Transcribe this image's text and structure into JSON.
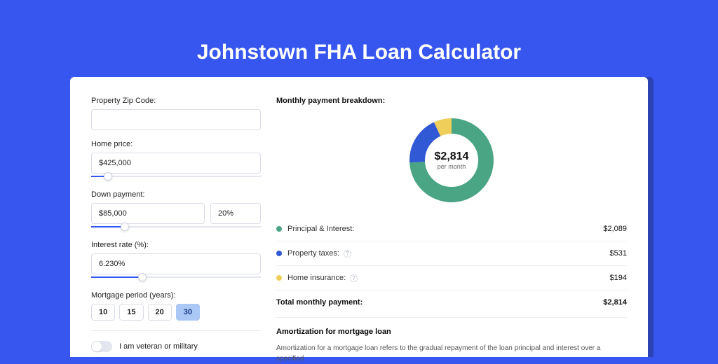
{
  "title": "Johnstown FHA Loan Calculator",
  "colors": {
    "page_bg": "#3656ef",
    "panel_shadow": "#2b42b5",
    "input_border": "#d9dde5",
    "slider_track": "#e3e6ee",
    "slider_fill": "#3656ef",
    "pill_active_bg": "#a9c8f5",
    "pill_active_fg": "#1a3a8a",
    "divider": "#eceef3"
  },
  "form": {
    "zip": {
      "label": "Property Zip Code:",
      "value": ""
    },
    "home_price": {
      "label": "Home price:",
      "value": "$425,000",
      "slider_pct": 10
    },
    "down_payment": {
      "label": "Down payment:",
      "value": "$85,000",
      "pct": "20%",
      "slider_pct": 20
    },
    "interest_rate": {
      "label": "Interest rate (%):",
      "value": "6.230%",
      "slider_pct": 30
    },
    "mortgage_period": {
      "label": "Mortgage period (years):",
      "options": [
        "10",
        "15",
        "20",
        "30"
      ],
      "selected": "30"
    },
    "veteran": {
      "label": "I am veteran or military",
      "checked": false
    }
  },
  "breakdown": {
    "title": "Monthly payment breakdown:",
    "center_value": "$2,814",
    "center_label": "per month",
    "donut": {
      "thickness": 22,
      "series": [
        {
          "key": "principal_interest",
          "color": "#4aa584",
          "pct": 74
        },
        {
          "key": "property_taxes",
          "color": "#3159d5",
          "pct": 19
        },
        {
          "key": "home_insurance",
          "color": "#efcf5a",
          "pct": 7
        }
      ]
    },
    "lines": [
      {
        "label": "Principal & Interest:",
        "color": "#4aa584",
        "value": "$2,089",
        "info": false
      },
      {
        "label": "Property taxes:",
        "color": "#3159d5",
        "value": "$531",
        "info": true
      },
      {
        "label": "Home insurance:",
        "color": "#efcf5a",
        "value": "$194",
        "info": true
      }
    ],
    "total": {
      "label": "Total monthly payment:",
      "value": "$2,814"
    }
  },
  "amortization": {
    "title": "Amortization for mortgage loan",
    "body": "Amortization for a mortgage loan refers to the gradual repayment of the loan principal and interest over a specified"
  }
}
